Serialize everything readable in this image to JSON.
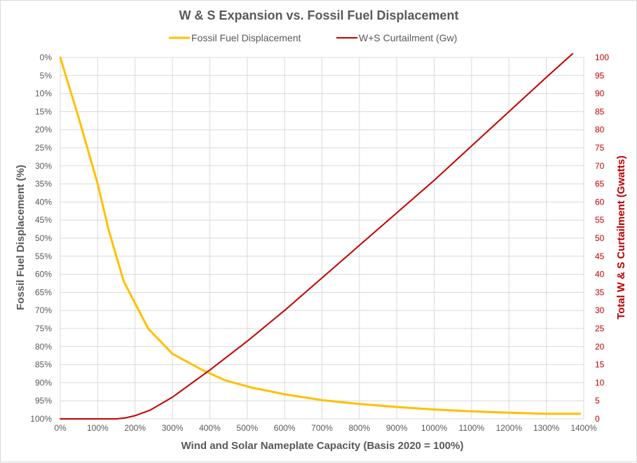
{
  "chart_data": {
    "type": "line",
    "title": "W & S Expansion vs. Fossil Fuel Displacement",
    "xlabel": "Wind and Solar Nameplate Capacity (Basis 2020 = 100%)",
    "ylabel": "Fossil Fuel Displacement (%)",
    "y2label": "Total W & S Curtailment (Gwatts)",
    "xlim": [
      0,
      1400
    ],
    "ylim": [
      0,
      100
    ],
    "y2lim": [
      0,
      100
    ],
    "y_inverted": true,
    "grid": true,
    "legend_position": "top",
    "x_ticks": [
      "0%",
      "100%",
      "200%",
      "300%",
      "400%",
      "500%",
      "600%",
      "700%",
      "800%",
      "900%",
      "1000%",
      "1100%",
      "1200%",
      "1300%",
      "1400%"
    ],
    "y_ticks": [
      "0%",
      "5%",
      "10%",
      "15%",
      "20%",
      "25%",
      "30%",
      "35%",
      "40%",
      "45%",
      "50%",
      "55%",
      "60%",
      "65%",
      "70%",
      "75%",
      "80%",
      "85%",
      "90%",
      "95%",
      "100%"
    ],
    "y2_ticks": [
      "0",
      "5",
      "10",
      "15",
      "20",
      "25",
      "30",
      "35",
      "40",
      "45",
      "50",
      "55",
      "60",
      "65",
      "70",
      "75",
      "80",
      "85",
      "90",
      "95",
      "100"
    ],
    "series": [
      {
        "name": "Fossil Fuel Displacement",
        "axis": "left",
        "color": "#ffc000",
        "x": [
          0,
          50,
          100,
          130,
          170,
          235,
          300,
          380,
          440,
          510,
          600,
          700,
          800,
          900,
          1000,
          1100,
          1200,
          1300,
          1390
        ],
        "y": [
          0,
          17,
          35,
          48,
          62,
          75,
          82,
          86.5,
          89.3,
          91.3,
          93.2,
          94.8,
          95.9,
          96.7,
          97.4,
          97.9,
          98.3,
          98.6,
          98.6
        ]
      },
      {
        "name": "W+S Curtailment (Gw)",
        "axis": "right",
        "color": "#c00000",
        "x": [
          0,
          100,
          150,
          175,
          200,
          240,
          300,
          400,
          500,
          600,
          700,
          800,
          900,
          1000,
          1100,
          1200,
          1300,
          1370
        ],
        "y": [
          0,
          0,
          0,
          0.3,
          0.9,
          2.4,
          6,
          13.5,
          21.5,
          30,
          39,
          48,
          57,
          66,
          75.5,
          85,
          94.5,
          101
        ]
      }
    ]
  }
}
